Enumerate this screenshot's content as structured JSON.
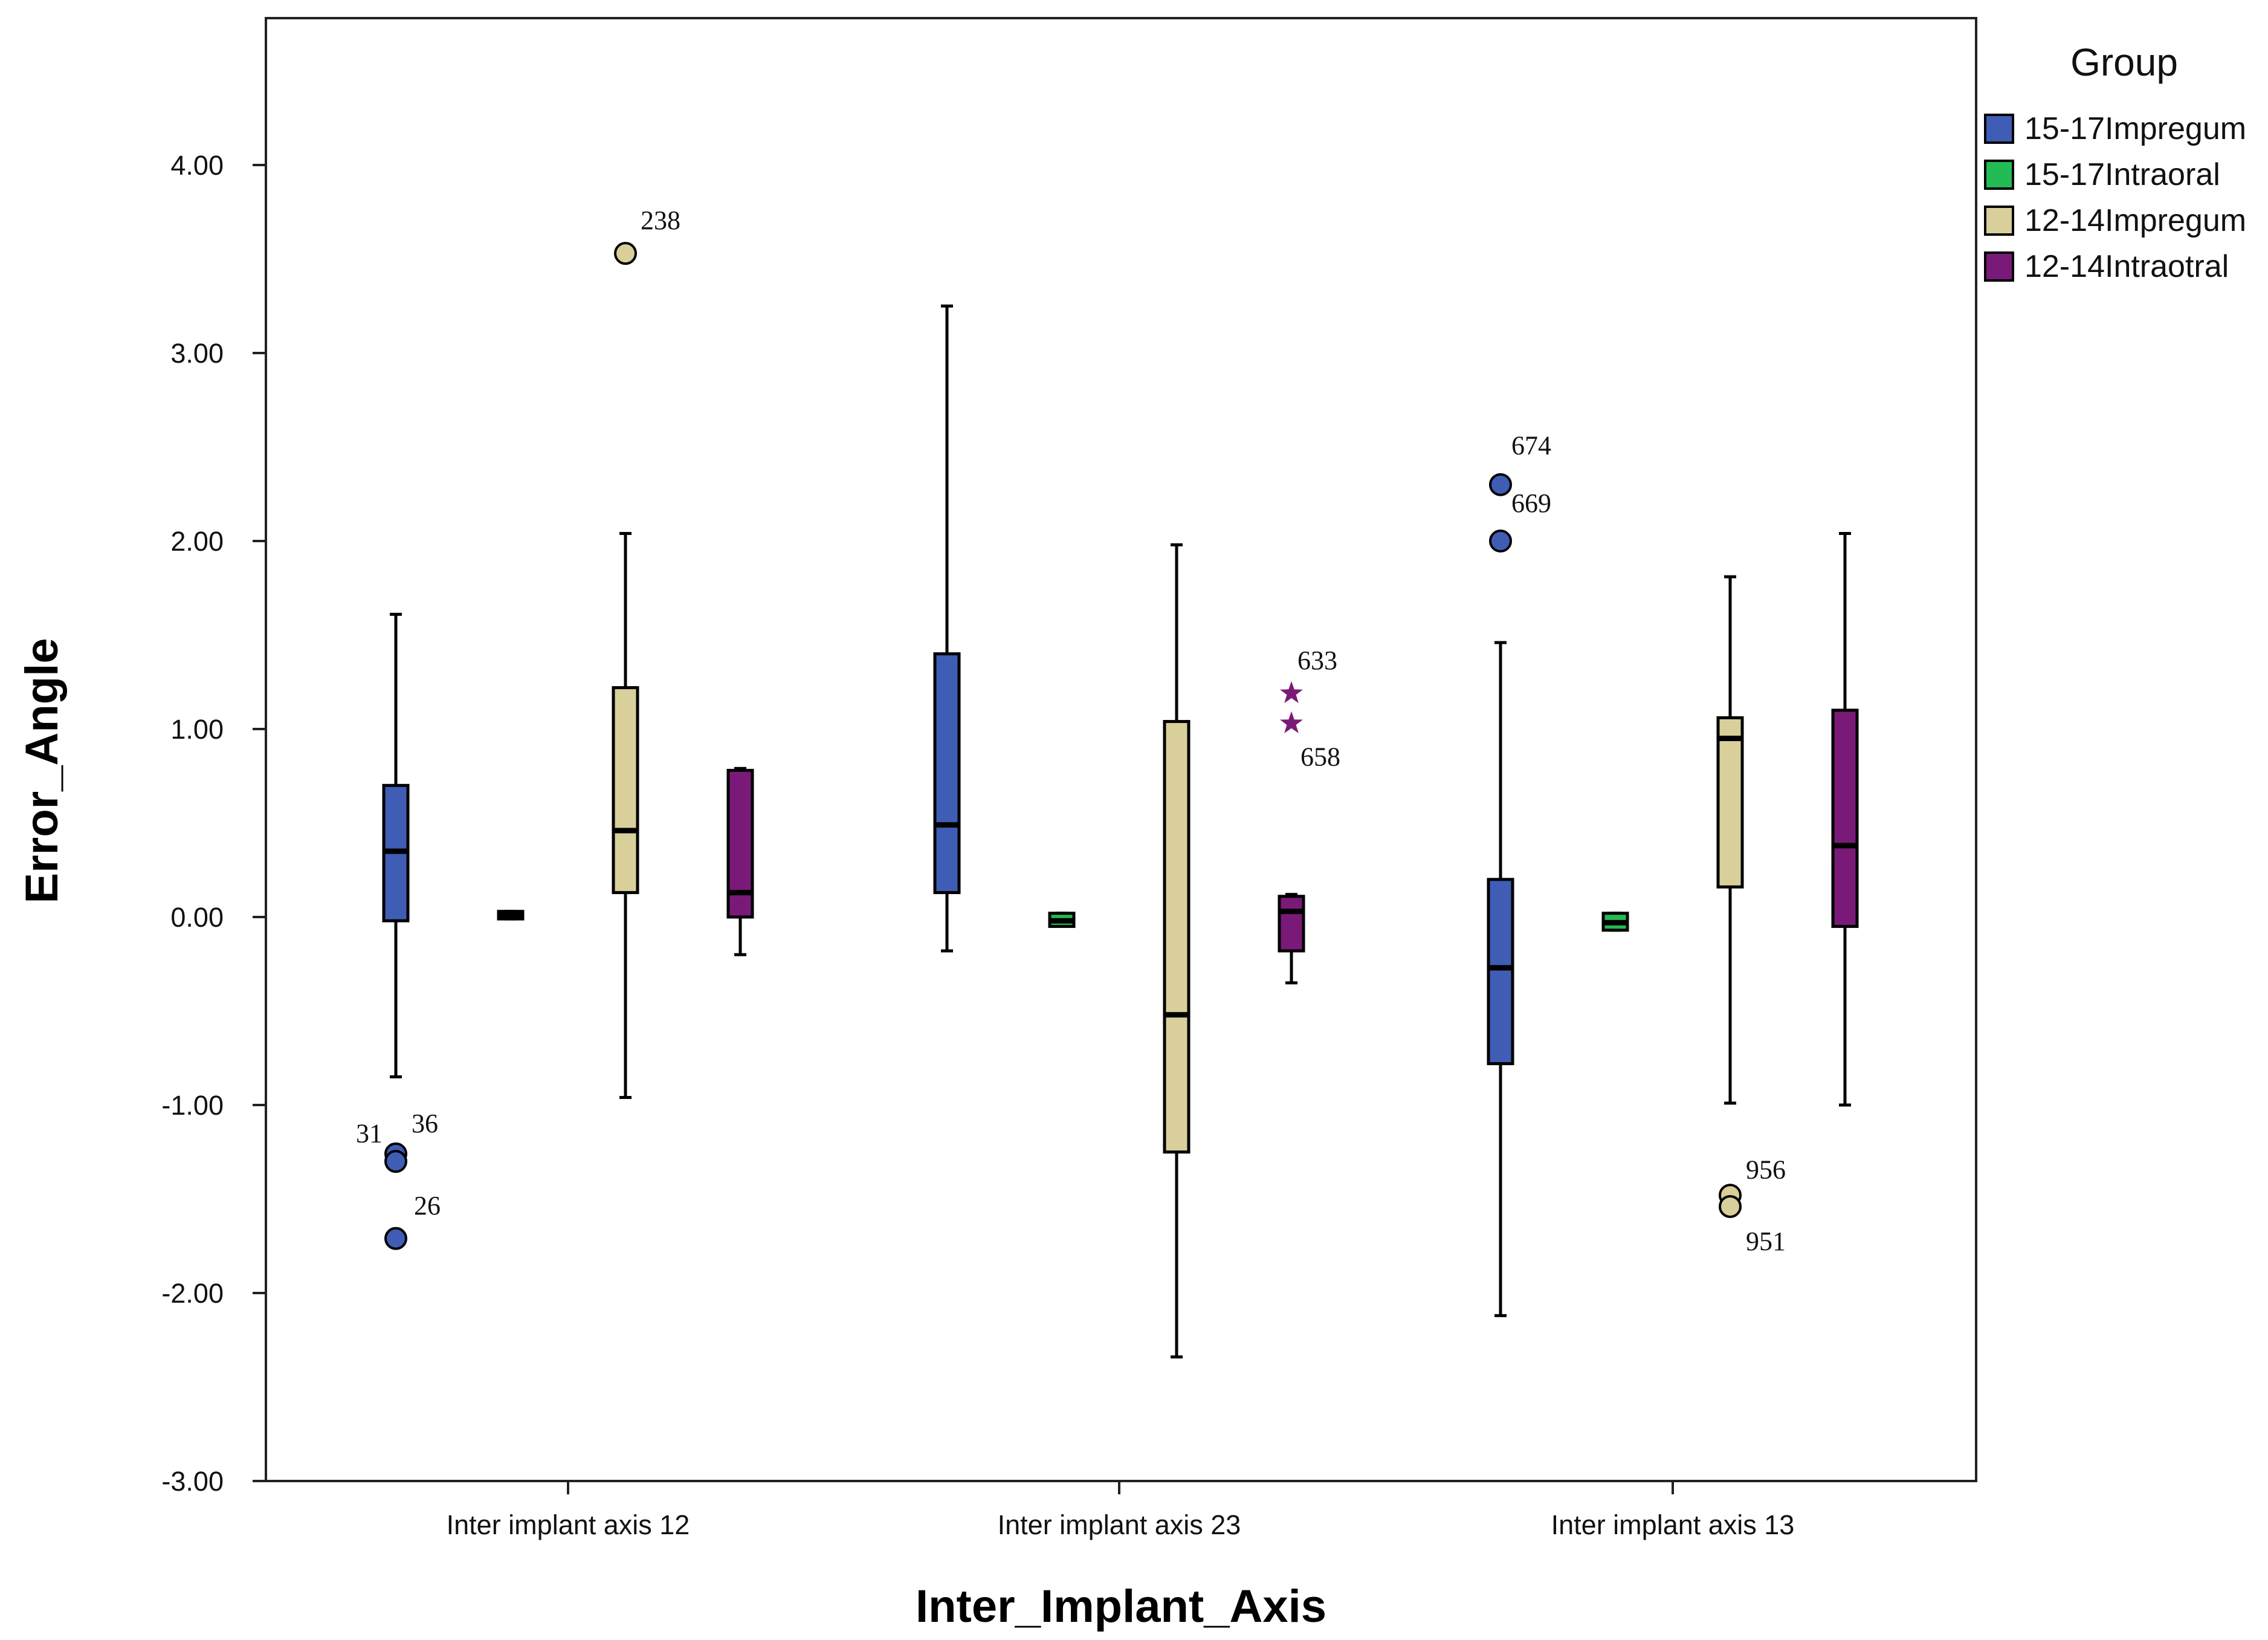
{
  "chart_data": {
    "type": "boxplot",
    "xlabel": "Inter_Implant_Axis",
    "ylabel": "Error_Angle",
    "ylim": [
      -3.0,
      4.8
    ],
    "yticks": [
      "-3.00",
      "-2.00",
      "-1.00",
      "0.00",
      "1.00",
      "2.00",
      "3.00",
      "4.00"
    ],
    "categories": [
      "Inter implant axis 12",
      "Inter implant axis 23",
      "Inter implant axis 13"
    ],
    "legend": {
      "title": "Group",
      "placement": "right"
    },
    "series": [
      {
        "name": "15-17Impregum",
        "color": "#3f5db5",
        "boxes": [
          {
            "min": -0.85,
            "q1": -0.02,
            "median": 0.35,
            "q3": 0.7,
            "max": 1.61
          },
          {
            "min": -0.18,
            "q1": 0.13,
            "median": 0.49,
            "q3": 1.4,
            "max": 3.25
          },
          {
            "min": -2.12,
            "q1": -0.78,
            "median": -0.27,
            "q3": 0.2,
            "max": 1.46
          }
        ],
        "outliers": [
          {
            "category": 0,
            "value": -1.26,
            "label": "36",
            "marker": "circle"
          },
          {
            "category": 0,
            "value": -1.3,
            "label": "31",
            "marker": "circle"
          },
          {
            "category": 0,
            "value": -1.71,
            "label": "26",
            "marker": "circle"
          },
          {
            "category": 2,
            "value": 2.3,
            "label": "674",
            "marker": "circle"
          },
          {
            "category": 2,
            "value": 2.0,
            "label": "669",
            "marker": "circle"
          }
        ]
      },
      {
        "name": "15-17Intraoral",
        "color": "#22bb55",
        "boxes": [
          {
            "min": -0.01,
            "q1": -0.01,
            "median": 0.01,
            "q3": 0.03,
            "max": 0.03
          },
          {
            "min": -0.05,
            "q1": -0.05,
            "median": -0.02,
            "q3": 0.02,
            "max": 0.02
          },
          {
            "min": -0.07,
            "q1": -0.07,
            "median": -0.03,
            "q3": 0.02,
            "max": 0.02
          }
        ],
        "outliers": []
      },
      {
        "name": "12-14Impregum",
        "color": "#d8cf9a",
        "boxes": [
          {
            "min": -0.96,
            "q1": 0.13,
            "median": 0.46,
            "q3": 1.22,
            "max": 2.04
          },
          {
            "min": -2.34,
            "q1": -1.25,
            "median": -0.52,
            "q3": 1.04,
            "max": 1.98
          },
          {
            "min": -0.99,
            "q1": 0.16,
            "median": 0.95,
            "q3": 1.06,
            "max": 1.81
          }
        ],
        "outliers": [
          {
            "category": 0,
            "value": 3.53,
            "label": "238",
            "marker": "circle"
          },
          {
            "category": 2,
            "value": -1.48,
            "label": "956",
            "marker": "circle"
          },
          {
            "category": 2,
            "value": -1.54,
            "label": "951",
            "marker": "circle"
          }
        ]
      },
      {
        "name": "12-14Intraotral",
        "color": "#7a1a78",
        "boxes": [
          {
            "min": -0.2,
            "q1": 0.0,
            "median": 0.13,
            "q3": 0.78,
            "max": 0.79
          },
          {
            "min": -0.35,
            "q1": -0.18,
            "median": 0.03,
            "q3": 0.11,
            "max": 0.12
          },
          {
            "min": -1.0,
            "q1": -0.05,
            "median": 0.38,
            "q3": 1.1,
            "max": 2.04
          }
        ],
        "outliers": [
          {
            "category": 1,
            "value": 1.19,
            "label": "633",
            "marker": "star"
          },
          {
            "category": 1,
            "value": 1.03,
            "label": "658",
            "marker": "star"
          }
        ]
      }
    ]
  }
}
